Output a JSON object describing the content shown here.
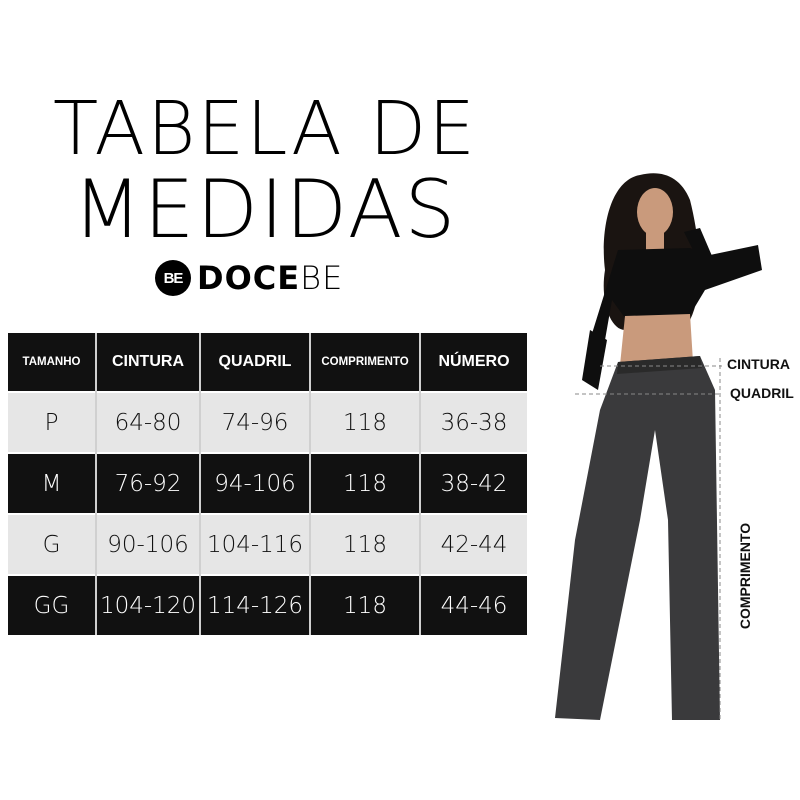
{
  "title": {
    "line1": "TABELA DE",
    "line2": "MEDIDAS"
  },
  "brand": {
    "logo_text": "BE",
    "name_bold": "DOCE",
    "name_light": "BE"
  },
  "table": {
    "headers": [
      "TAMANHO",
      "CINTURA",
      "QUADRIL",
      "COMPRIMENTO",
      "NÚMERO"
    ],
    "rows": [
      [
        "P",
        "64-80",
        "74-96",
        "118",
        "36-38"
      ],
      [
        "M",
        "76-92",
        "94-106",
        "118",
        "38-42"
      ],
      [
        "G",
        "90-106",
        "104-116",
        "118",
        "42-44"
      ],
      [
        "GG",
        "104-120",
        "114-126",
        "118",
        "44-46"
      ]
    ]
  },
  "measure_labels": {
    "waist": "CINTURA",
    "hip": "QUADRIL",
    "length": "COMPRIMENTO"
  },
  "colors": {
    "header_bg": "#111111",
    "light_row": "#e6e6e6",
    "dark_row": "#111111"
  }
}
